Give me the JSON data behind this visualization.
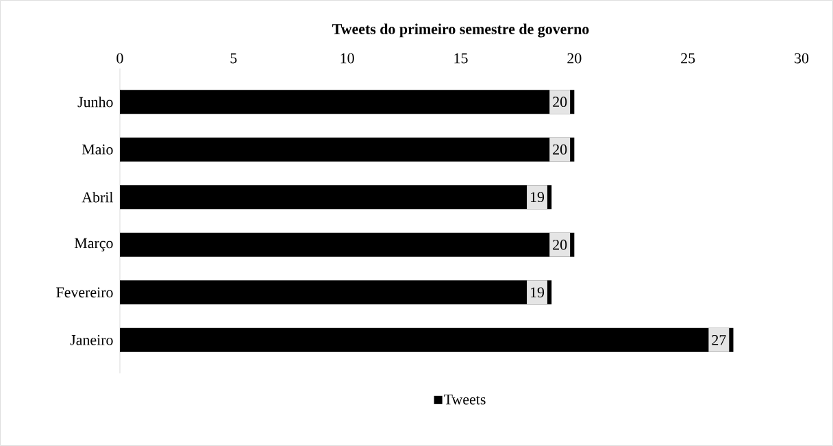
{
  "chart_data": {
    "type": "bar",
    "orientation": "horizontal",
    "title": "Tweets do primeiro semestre de governo",
    "categories": [
      "Junho",
      "Maio",
      "Abril",
      "Março",
      "Fevereiro",
      "Janeiro"
    ],
    "series": [
      {
        "name": "Tweets",
        "color": "#000000",
        "values": [
          20,
          20,
          19,
          20,
          19,
          27
        ]
      }
    ],
    "xlim": [
      0,
      30
    ],
    "xticks": [
      0,
      5,
      10,
      15,
      20,
      25,
      30
    ],
    "data_labels": true,
    "grid": false,
    "legend": "bottom"
  }
}
